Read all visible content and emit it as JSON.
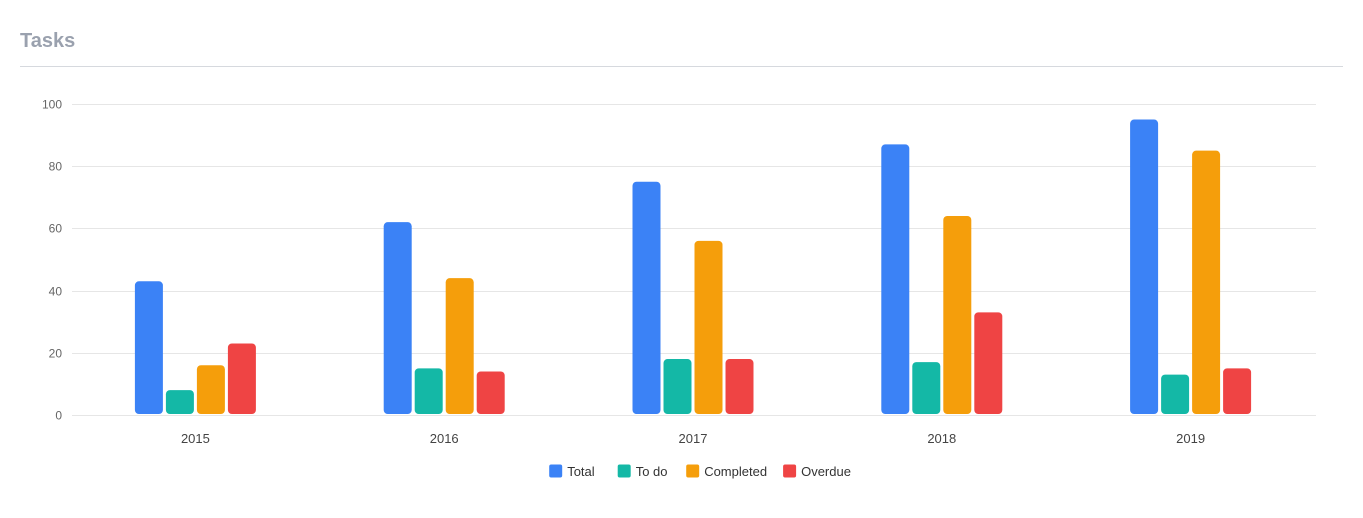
{
  "card": {
    "title": "Tasks"
  },
  "chart_data": {
    "type": "bar",
    "categories": [
      "2015",
      "2016",
      "2017",
      "2018",
      "2019"
    ],
    "series": [
      {
        "name": "Total",
        "color": "#3b82f6",
        "values": [
          43,
          62,
          75,
          87,
          95
        ]
      },
      {
        "name": "To do",
        "color": "#14b8a6",
        "values": [
          8,
          15,
          18,
          17,
          13
        ]
      },
      {
        "name": "Completed",
        "color": "#f59e0b",
        "values": [
          16,
          44,
          56,
          64,
          85
        ]
      },
      {
        "name": "Overdue",
        "color": "#ef4444",
        "values": [
          23,
          14,
          18,
          33,
          15
        ]
      }
    ],
    "yticks": [
      "0",
      "20",
      "40",
      "60",
      "80",
      "100"
    ],
    "ylim": [
      0,
      100
    ],
    "grid": true,
    "legend_position": "bottom"
  }
}
